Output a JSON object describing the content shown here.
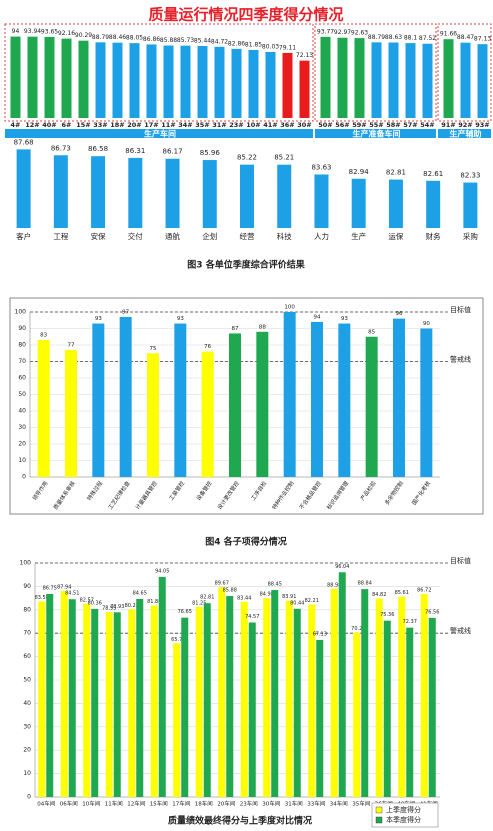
{
  "captions": [
    "图3 各单位季度综合评价结果",
    "图4 各子项得分情况"
  ],
  "chart_data": [
    {
      "type": "group_bar",
      "title": "质量运行情况四季度得分情况",
      "ylim": [
        20,
        100
      ],
      "groups": [
        {
          "name": "生产车间",
          "categories": [
            "4#",
            "12#",
            "40#",
            "6#",
            "15#",
            "33#",
            "18#",
            "20#",
            "17#",
            "11#",
            "34#",
            "35#",
            "31#",
            "23#",
            "10#",
            "41#",
            "36#",
            "30#"
          ],
          "values": [
            94.0,
            93.94,
            93.65,
            92.16,
            90.29,
            88.79,
            88.46,
            88.05,
            86.86,
            85.88,
            85.73,
            85.44,
            84.72,
            82.86,
            81.85,
            80.03,
            79.11,
            72.13
          ],
          "colors": [
            "#1fa84f",
            "#1fa84f",
            "#1fa84f",
            "#1fa84f",
            "#1fa84f",
            "#1ea0e6",
            "#1ea0e6",
            "#1ea0e6",
            "#1ea0e6",
            "#1ea0e6",
            "#1ea0e6",
            "#1ea0e6",
            "#1ea0e6",
            "#1ea0e6",
            "#1ea0e6",
            "#1ea0e6",
            "#e81c1c",
            "#e81c1c"
          ]
        },
        {
          "name": "生产准备车间",
          "categories": [
            "50#",
            "56#",
            "59#",
            "55#",
            "58#",
            "57#",
            "54#"
          ],
          "values": [
            93.77,
            92.97,
            92.63,
            88.79,
            88.63,
            88.1,
            87.52
          ],
          "colors": [
            "#1fa84f",
            "#1fa84f",
            "#1fa84f",
            "#1ea0e6",
            "#1ea0e6",
            "#1ea0e6",
            "#1ea0e6"
          ]
        },
        {
          "name": "生产辅助",
          "categories": [
            "91#",
            "92#",
            "93#"
          ],
          "values": [
            91.66,
            88.47,
            87.13
          ],
          "colors": [
            "#1fa84f",
            "#1ea0e6",
            "#1ea0e6"
          ]
        }
      ]
    },
    {
      "type": "bar",
      "color": "#1ea0e6",
      "ylim": [
        75,
        90
      ],
      "categories": [
        "客户",
        "工程",
        "安保",
        "交付",
        "通航",
        "企划",
        "经营",
        "科技",
        "人力",
        "生产",
        "运保",
        "财务",
        "采购"
      ],
      "values": [
        87.68,
        86.73,
        86.58,
        86.31,
        86.17,
        85.96,
        85.22,
        85.21,
        83.63,
        82.94,
        82.81,
        82.61,
        82.33
      ]
    },
    {
      "type": "bar",
      "ylim": [
        0,
        100
      ],
      "yticks": [
        0,
        10,
        20,
        30,
        40,
        50,
        60,
        70,
        80,
        90,
        100
      ],
      "reference_lines": [
        {
          "value": 100,
          "label": "目标值"
        },
        {
          "value": 70,
          "label": "警戒线"
        }
      ],
      "categories": [
        "领导作用",
        "质量体系审核",
        "特殊过程",
        "工艺纪律检查",
        "计量器具管控",
        "工装管控",
        "设备管控",
        "设计更改管控",
        "工序自检",
        "特种作业控制",
        "不合格品管控",
        "标识追溯管理",
        "产品检验",
        "多余物控制",
        "国产化考核"
      ],
      "values": [
        83,
        77,
        93,
        97,
        75,
        93,
        76,
        87,
        88,
        100,
        94,
        93,
        85,
        96,
        90
      ],
      "colors": [
        "#ffff00",
        "#ffff00",
        "#1ea0e6",
        "#1ea0e6",
        "#ffff00",
        "#1ea0e6",
        "#ffff00",
        "#1fa84f",
        "#1fa84f",
        "#1ea0e6",
        "#1ea0e6",
        "#1ea0e6",
        "#1fa84f",
        "#1ea0e6",
        "#1ea0e6"
      ]
    },
    {
      "type": "grouped_bar",
      "title": "质量绩效最终得分与上季度对比情况",
      "ylim": [
        0,
        100
      ],
      "yticks": [
        0,
        10,
        20,
        30,
        40,
        50,
        60,
        70,
        80,
        90,
        100
      ],
      "legend": "lower right",
      "reference_lines": [
        {
          "value": 100,
          "label": "目标值"
        },
        {
          "value": 70,
          "label": "警戒线"
        }
      ],
      "categories": [
        "04车间",
        "06车间",
        "10车间",
        "11车间",
        "12车间",
        "15车间",
        "17车间",
        "18车间",
        "20车间",
        "23车间",
        "30车间",
        "31车间",
        "33车间",
        "34车间",
        "35车间",
        "36车间",
        "40车间",
        "41车间"
      ],
      "series": [
        {
          "name": "上季度得分",
          "color": "#ffff00",
          "values": [
            83.58,
            87.94,
            82.57,
            78.99,
            80.23,
            81.86,
            65.7,
            81.25,
            89.67,
            83.44,
            84.98,
            83.91,
            82.21,
            88.98,
            70.2,
            84.82,
            85.61,
            86.72
          ]
        },
        {
          "name": "本季度得分",
          "color": "#1fa84f",
          "values": [
            86.75,
            84.51,
            80.36,
            78.93,
            84.65,
            94.05,
            76.65,
            82.81,
            85.88,
            74.57,
            88.45,
            80.44,
            67.13,
            96.04,
            88.84,
            75.36,
            72.37,
            76.56
          ]
        }
      ]
    }
  ]
}
